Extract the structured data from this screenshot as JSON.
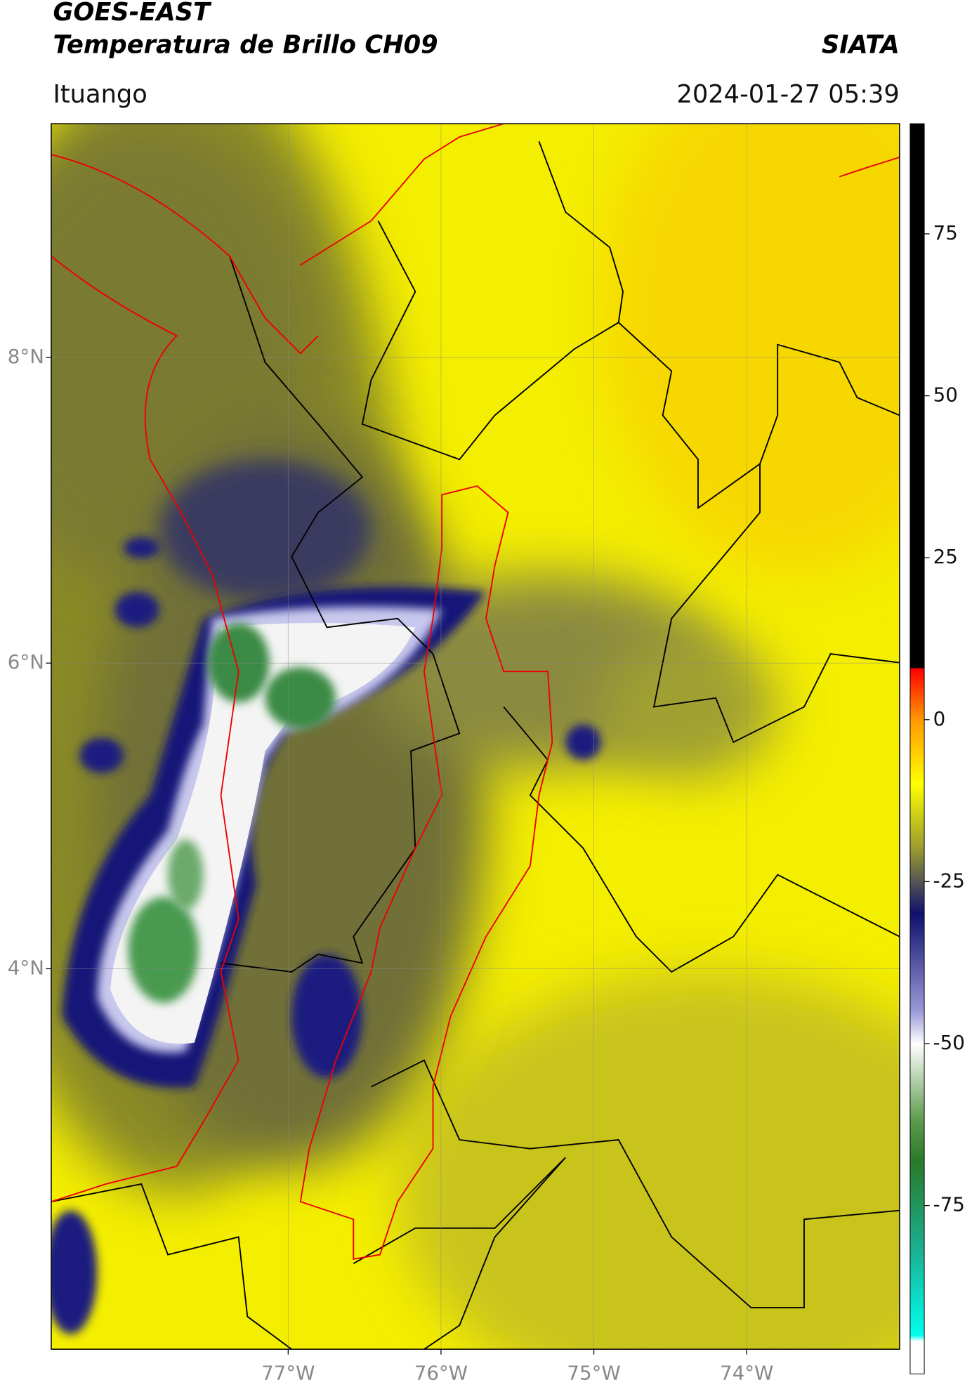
{
  "map": {
    "title": "GOES-EAST",
    "subtitle": "Temperatura de Brillo CH09",
    "source": "SIATA",
    "location": "Ituango",
    "datetime": "2024-01-27 05:39",
    "xlim": [
      -78.55,
      -73.0
    ],
    "ylim": [
      1.51,
      9.53
    ],
    "xticks": [
      {
        "value": -77,
        "label": "77°W"
      },
      {
        "value": -76,
        "label": "76°W"
      },
      {
        "value": -75,
        "label": "75°W"
      },
      {
        "value": -74,
        "label": "74°W"
      }
    ],
    "yticks": [
      {
        "value": 8,
        "label": "8°N"
      },
      {
        "value": 6,
        "label": "6°N"
      },
      {
        "value": 4,
        "label": "4°N"
      }
    ],
    "grid": true,
    "colorbar": {
      "lim": [
        -101,
        92
      ],
      "ticks": [
        75,
        50,
        25,
        0,
        -25,
        -50,
        -75
      ]
    }
  }
}
